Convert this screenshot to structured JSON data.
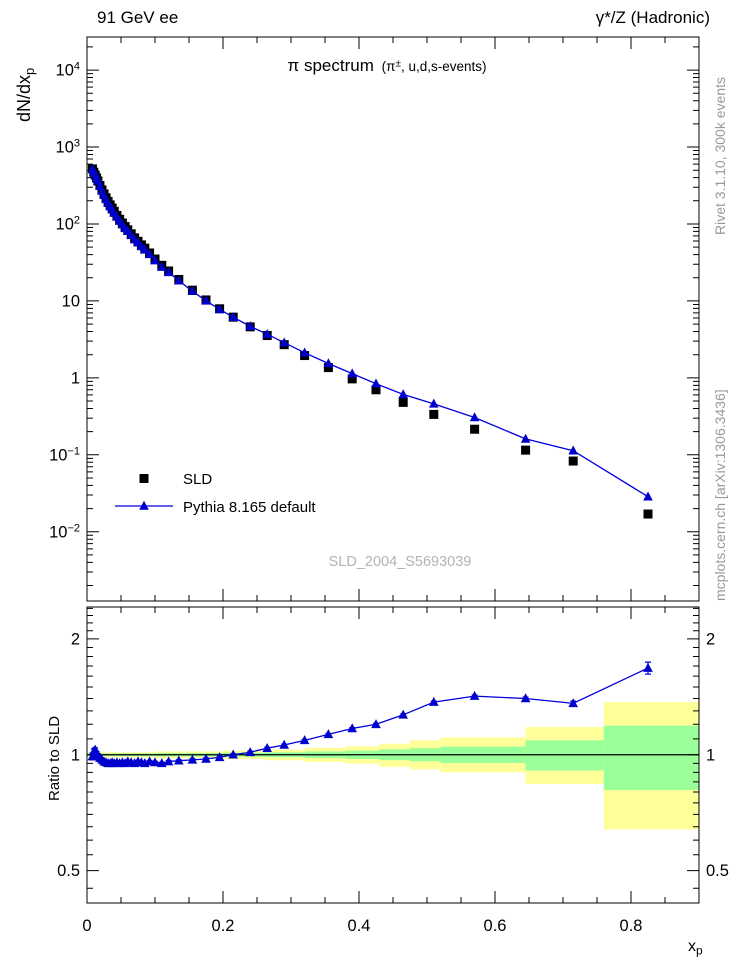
{
  "header": {
    "left": "91 GeV ee",
    "right": "γ*/Z (Hadronic)"
  },
  "main_panel": {
    "title": "π spectrum",
    "title_paren": {
      "pre": " (π",
      "sup": "±",
      "post": ", u,d,s-events)"
    },
    "ylabel": {
      "pre": "dN/dx",
      "sub": "p"
    },
    "watermark": "SLD_2004_S5693039",
    "legend": [
      {
        "label": "SLD",
        "marker": "black-square"
      },
      {
        "label": "Pythia 8.165 default",
        "marker": "blue-triangle-line"
      }
    ]
  },
  "ratio_panel": {
    "ylabel": "Ratio to SLD"
  },
  "side_text": {
    "top": "Rivet 3.1.10,  300k events",
    "bottom": "mcplots.cern.ch [arXiv:1306.3436]"
  },
  "xaxis": {
    "label": {
      "base": "x",
      "sub": "p"
    }
  },
  "chart_data": {
    "type": "line",
    "title": "π spectrum (π±, u,d,s-events)",
    "xlabel": "x_p",
    "ylabel_main": "dN/dx_p",
    "ylabel_ratio": "Ratio to SLD",
    "x_range": [
      0,
      0.9
    ],
    "main_ylog_range": [
      -2.9,
      4.43
    ],
    "ratio_y_range": [
      0.412,
      2.42
    ],
    "x_minor_step": 0.05,
    "x_major_step": 0.2,
    "x_ticks": [
      0,
      0.2,
      0.4,
      0.6,
      0.8
    ],
    "main_ydecades": [
      4,
      3,
      2,
      1,
      0,
      -1,
      -2
    ],
    "ratio_ticks": [
      2,
      1,
      0.5
    ],
    "legend_position": "left-middle",
    "grid": false,
    "x": [
      0.008,
      0.01,
      0.012,
      0.014,
      0.016,
      0.019,
      0.022,
      0.025,
      0.028,
      0.031,
      0.034,
      0.037,
      0.04,
      0.044,
      0.048,
      0.052,
      0.056,
      0.06,
      0.065,
      0.07,
      0.075,
      0.08,
      0.085,
      0.092,
      0.1,
      0.11,
      0.12,
      0.135,
      0.155,
      0.175,
      0.195,
      0.215,
      0.24,
      0.265,
      0.29,
      0.32,
      0.355,
      0.39,
      0.425,
      0.465,
      0.51,
      0.57,
      0.645,
      0.715,
      0.825
    ],
    "sld": [
      520,
      470,
      432,
      396,
      362,
      316,
      277,
      246,
      219,
      196,
      177,
      161,
      146,
      129,
      115,
      103,
      92.5,
      84,
      74.5,
      66,
      59.5,
      53.5,
      48.5,
      42,
      35,
      29,
      24.5,
      19,
      13.8,
      10.3,
      7.9,
      6.15,
      4.6,
      3.55,
      2.7,
      1.95,
      1.36,
      0.97,
      0.7,
      0.48,
      0.335,
      0.215,
      0.115,
      0.083,
      0.017
    ],
    "pythia_ratio": [
      0.99,
      1.02,
      1.03,
      1.01,
      1.0,
      0.98,
      0.97,
      0.96,
      0.955,
      0.95,
      0.95,
      0.955,
      0.95,
      0.955,
      0.95,
      0.955,
      0.95,
      0.96,
      0.955,
      0.95,
      0.96,
      0.955,
      0.95,
      0.96,
      0.955,
      0.95,
      0.96,
      0.965,
      0.97,
      0.975,
      0.985,
      1.0,
      1.015,
      1.04,
      1.06,
      1.09,
      1.13,
      1.17,
      1.2,
      1.27,
      1.37,
      1.42,
      1.4,
      1.36,
      1.68
    ],
    "pythia_ratio_err": [
      0.02,
      0.015,
      0.012,
      0.01,
      0.006,
      0.006,
      0.006,
      0.006,
      0.006,
      0.006,
      0.006,
      0.006,
      0.006,
      0.006,
      0.006,
      0.006,
      0.006,
      0.006,
      0.006,
      0.006,
      0.006,
      0.006,
      0.006,
      0.006,
      0.006,
      0.006,
      0.006,
      0.006,
      0.006,
      0.006,
      0.006,
      0.006,
      0.006,
      0.006,
      0.006,
      0.006,
      0.006,
      0.006,
      0.006,
      0.006,
      0.008,
      0.01,
      0.012,
      0.018,
      0.06
    ],
    "uncertainty_bands": [
      {
        "x": [
          0.0,
          0.1
        ],
        "yellow": [
          0.985,
          1.015
        ],
        "green": [
          0.992,
          1.008
        ]
      },
      {
        "x": [
          0.1,
          0.2
        ],
        "yellow": [
          0.98,
          1.02
        ],
        "green": [
          0.99,
          1.01
        ]
      },
      {
        "x": [
          0.2,
          0.26
        ],
        "yellow": [
          0.975,
          1.025
        ],
        "green": [
          0.988,
          1.012
        ]
      },
      {
        "x": [
          0.26,
          0.32
        ],
        "yellow": [
          0.968,
          1.032
        ],
        "green": [
          0.985,
          1.015
        ]
      },
      {
        "x": [
          0.32,
          0.38
        ],
        "yellow": [
          0.958,
          1.042
        ],
        "green": [
          0.98,
          1.02
        ]
      },
      {
        "x": [
          0.38,
          0.43
        ],
        "yellow": [
          0.948,
          1.052
        ],
        "green": [
          0.975,
          1.025
        ]
      },
      {
        "x": [
          0.43,
          0.475
        ],
        "yellow": [
          0.93,
          1.068
        ],
        "green": [
          0.968,
          1.033
        ]
      },
      {
        "x": [
          0.475,
          0.52
        ],
        "yellow": [
          0.916,
          1.09
        ],
        "green": [
          0.962,
          1.04
        ]
      },
      {
        "x": [
          0.52,
          0.645
        ],
        "yellow": [
          0.9,
          1.11
        ],
        "green": [
          0.952,
          1.05
        ]
      },
      {
        "x": [
          0.645,
          0.76
        ],
        "yellow": [
          0.84,
          1.18
        ],
        "green": [
          0.91,
          1.09
        ]
      },
      {
        "x": [
          0.76,
          0.9
        ],
        "yellow": [
          0.64,
          1.37
        ],
        "green": [
          0.81,
          1.19
        ]
      }
    ],
    "colors": {
      "pythia_line": "#0000e0",
      "pythia_marker": "#0000cc",
      "sld_marker": "#000000",
      "yellow_band": "#ffff99",
      "green_band": "#99ff99",
      "unity_line": "#000000"
    }
  }
}
